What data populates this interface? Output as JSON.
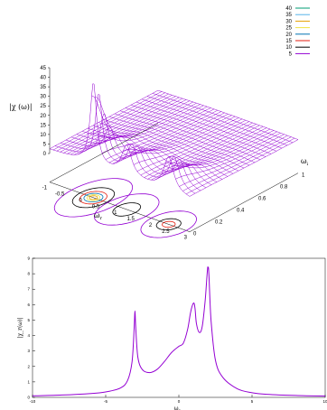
{
  "chart_data": [
    {
      "type": "surface3d",
      "zlabel": "|χ (ω)|",
      "xlabel": "ω",
      "xlabel_sub": "r",
      "ylabel": "ω",
      "ylabel_sub": "i",
      "x_ticks": [
        "-1",
        "-0.5",
        "0",
        "0.5",
        "1",
        "1.5",
        "2",
        "2.5",
        "3"
      ],
      "y_ticks": [
        "0",
        "0.2",
        "0.4",
        "0.6",
        "0.8",
        "1"
      ],
      "z_ticks": [
        "0",
        "5",
        "10",
        "15",
        "20",
        "25",
        "30",
        "35",
        "40",
        "45"
      ],
      "xlim": [
        -1,
        3
      ],
      "ylim": [
        0,
        1
      ],
      "zlim": [
        0,
        45
      ],
      "surface_color": "#9400d3",
      "contour_legend": [
        {
          "label": "40",
          "color": "#009e73"
        },
        {
          "label": "35",
          "color": "#56b4e9"
        },
        {
          "label": "30",
          "color": "#e69f00"
        },
        {
          "label": "25",
          "color": "#f0e442"
        },
        {
          "label": "20",
          "color": "#0072b2"
        },
        {
          "label": "15",
          "color": "#e51e10"
        },
        {
          "label": "10",
          "color": "#000000"
        },
        {
          "label": "5",
          "color": "#9400d3"
        }
      ],
      "peaks": [
        {
          "omega_r": 0.25,
          "omega_i": 0.0,
          "height": 45
        },
        {
          "omega_r": 1.2,
          "omega_i": 0.0,
          "height": 18
        },
        {
          "omega_r": 2.4,
          "omega_i": 0.0,
          "height": 20
        }
      ]
    },
    {
      "type": "line",
      "ylabel": "|χ_r(ω)|",
      "xlabel": "ω",
      "xlabel_sub": "r",
      "x_ticks": [
        "-10",
        "-5",
        "0",
        "5",
        "10"
      ],
      "y_ticks": [
        "0",
        "1",
        "2",
        "3",
        "4",
        "5",
        "6",
        "7",
        "8",
        "9"
      ],
      "xlim": [
        -10,
        10
      ],
      "ylim": [
        0,
        9
      ],
      "line_color": "#9400d3",
      "series": [
        {
          "x": [
            -10,
            -8,
            -6,
            -5,
            -4,
            -3.5,
            -3.2,
            -3.05,
            -3.0,
            -2.95,
            -2.8,
            -2.5,
            -2.0,
            -1.5,
            -1.0,
            -0.5,
            0,
            0.3,
            0.6,
            0.8,
            1.0,
            1.1,
            1.2,
            1.4,
            1.6,
            1.8,
            1.95,
            2.0,
            2.05,
            2.2,
            2.5,
            3,
            4,
            5,
            6,
            8,
            10
          ],
          "y": [
            0.1,
            0.15,
            0.25,
            0.35,
            0.6,
            1.1,
            2.3,
            4.6,
            5.6,
            4.6,
            2.6,
            1.8,
            1.6,
            1.8,
            2.3,
            2.9,
            3.3,
            3.5,
            4.4,
            5.5,
            6.1,
            5.8,
            4.8,
            4.2,
            4.6,
            6.3,
            8.2,
            8.4,
            8.0,
            5.0,
            2.4,
            1.3,
            0.55,
            0.3,
            0.2,
            0.12,
            0.08
          ]
        }
      ]
    }
  ]
}
